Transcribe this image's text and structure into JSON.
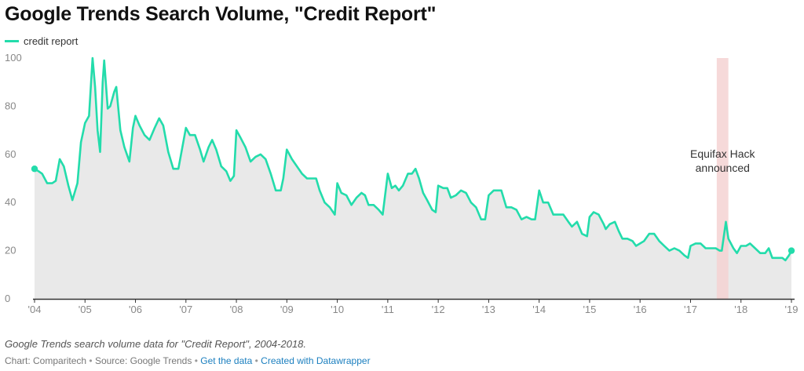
{
  "page": {
    "title": "Google Trends Search Volume, \"Credit Report\"",
    "caption": "Google Trends search volume data for \"Credit Report\", 2004-2018.",
    "footer": {
      "chart_by": "Chart: Comparitech",
      "source": "Source: Google Trends",
      "get_data": "Get the data",
      "created_with": "Created with Datawrapper",
      "separator": "•"
    }
  },
  "colors": {
    "line": "#23dcab",
    "area": "#e9e9e9",
    "highlight": "#f4d2d2",
    "axis": "#333333",
    "grid": "#e0e0e0"
  },
  "chart_data": {
    "type": "area",
    "ylim": [
      0,
      100
    ],
    "xlim": [
      2004,
      2019
    ],
    "y_ticks": [
      0,
      20,
      40,
      60,
      80,
      100
    ],
    "x_ticks": [
      {
        "value": 2004,
        "label": "'04"
      },
      {
        "value": 2005,
        "label": "'05"
      },
      {
        "value": 2006,
        "label": "'06"
      },
      {
        "value": 2007,
        "label": "'07"
      },
      {
        "value": 2008,
        "label": "'08"
      },
      {
        "value": 2009,
        "label": "'09"
      },
      {
        "value": 2010,
        "label": "'10"
      },
      {
        "value": 2011,
        "label": "'11"
      },
      {
        "value": 2012,
        "label": "'12"
      },
      {
        "value": 2013,
        "label": "'13"
      },
      {
        "value": 2014,
        "label": "'14"
      },
      {
        "value": 2015,
        "label": "'15"
      },
      {
        "value": 2016,
        "label": "'16"
      },
      {
        "value": 2017,
        "label": "'17"
      },
      {
        "value": 2018,
        "label": "'18"
      },
      {
        "value": 2019,
        "label": "'19"
      }
    ],
    "series": [
      {
        "name": "credit report",
        "points": [
          [
            2004.0,
            54
          ],
          [
            2004.08,
            53
          ],
          [
            2004.15,
            52
          ],
          [
            2004.25,
            48
          ],
          [
            2004.35,
            48
          ],
          [
            2004.42,
            49
          ],
          [
            2004.5,
            58
          ],
          [
            2004.58,
            55
          ],
          [
            2004.67,
            47
          ],
          [
            2004.75,
            41
          ],
          [
            2004.85,
            48
          ],
          [
            2004.92,
            65
          ],
          [
            2005.0,
            73
          ],
          [
            2005.08,
            76
          ],
          [
            2005.15,
            100
          ],
          [
            2005.2,
            88
          ],
          [
            2005.25,
            70
          ],
          [
            2005.3,
            61
          ],
          [
            2005.35,
            90
          ],
          [
            2005.38,
            99
          ],
          [
            2005.45,
            79
          ],
          [
            2005.5,
            80
          ],
          [
            2005.58,
            86
          ],
          [
            2005.62,
            88
          ],
          [
            2005.7,
            70
          ],
          [
            2005.78,
            63
          ],
          [
            2005.88,
            57
          ],
          [
            2005.95,
            71
          ],
          [
            2006.0,
            76
          ],
          [
            2006.08,
            72
          ],
          [
            2006.18,
            68
          ],
          [
            2006.28,
            66
          ],
          [
            2006.38,
            71
          ],
          [
            2006.47,
            75
          ],
          [
            2006.55,
            72
          ],
          [
            2006.65,
            61
          ],
          [
            2006.75,
            54
          ],
          [
            2006.85,
            54
          ],
          [
            2006.92,
            62
          ],
          [
            2007.0,
            71
          ],
          [
            2007.08,
            68
          ],
          [
            2007.18,
            68
          ],
          [
            2007.28,
            62
          ],
          [
            2007.35,
            57
          ],
          [
            2007.45,
            63
          ],
          [
            2007.52,
            66
          ],
          [
            2007.6,
            62
          ],
          [
            2007.7,
            55
          ],
          [
            2007.8,
            53
          ],
          [
            2007.88,
            49
          ],
          [
            2007.95,
            51
          ],
          [
            2008.0,
            70
          ],
          [
            2008.08,
            67
          ],
          [
            2008.18,
            63
          ],
          [
            2008.28,
            57
          ],
          [
            2008.38,
            59
          ],
          [
            2008.48,
            60
          ],
          [
            2008.58,
            58
          ],
          [
            2008.68,
            52
          ],
          [
            2008.78,
            45
          ],
          [
            2008.88,
            45
          ],
          [
            2008.93,
            50
          ],
          [
            2009.0,
            62
          ],
          [
            2009.1,
            58
          ],
          [
            2009.2,
            55
          ],
          [
            2009.3,
            52
          ],
          [
            2009.4,
            50
          ],
          [
            2009.5,
            50
          ],
          [
            2009.58,
            50
          ],
          [
            2009.65,
            45
          ],
          [
            2009.75,
            40
          ],
          [
            2009.85,
            38
          ],
          [
            2009.95,
            35
          ],
          [
            2010.0,
            48
          ],
          [
            2010.08,
            44
          ],
          [
            2010.18,
            43
          ],
          [
            2010.28,
            39
          ],
          [
            2010.38,
            42
          ],
          [
            2010.48,
            44
          ],
          [
            2010.55,
            43
          ],
          [
            2010.62,
            39
          ],
          [
            2010.72,
            39
          ],
          [
            2010.82,
            37
          ],
          [
            2010.9,
            35
          ],
          [
            2011.0,
            52
          ],
          [
            2011.08,
            46
          ],
          [
            2011.15,
            47
          ],
          [
            2011.22,
            45
          ],
          [
            2011.3,
            47
          ],
          [
            2011.4,
            52
          ],
          [
            2011.48,
            52
          ],
          [
            2011.55,
            54
          ],
          [
            2011.62,
            50
          ],
          [
            2011.7,
            44
          ],
          [
            2011.78,
            41
          ],
          [
            2011.88,
            37
          ],
          [
            2011.95,
            36
          ],
          [
            2012.0,
            47
          ],
          [
            2012.1,
            46
          ],
          [
            2012.18,
            46
          ],
          [
            2012.25,
            42
          ],
          [
            2012.35,
            43
          ],
          [
            2012.45,
            45
          ],
          [
            2012.55,
            44
          ],
          [
            2012.65,
            40
          ],
          [
            2012.75,
            38
          ],
          [
            2012.85,
            33
          ],
          [
            2012.93,
            33
          ],
          [
            2013.0,
            43
          ],
          [
            2013.1,
            45
          ],
          [
            2013.25,
            45
          ],
          [
            2013.35,
            38
          ],
          [
            2013.45,
            38
          ],
          [
            2013.55,
            37
          ],
          [
            2013.65,
            33
          ],
          [
            2013.75,
            34
          ],
          [
            2013.85,
            33
          ],
          [
            2013.92,
            33
          ],
          [
            2014.0,
            45
          ],
          [
            2014.08,
            40
          ],
          [
            2014.18,
            40
          ],
          [
            2014.28,
            35
          ],
          [
            2014.38,
            35
          ],
          [
            2014.48,
            35
          ],
          [
            2014.58,
            32
          ],
          [
            2014.65,
            30
          ],
          [
            2014.75,
            32
          ],
          [
            2014.85,
            27
          ],
          [
            2014.95,
            26
          ],
          [
            2015.0,
            34
          ],
          [
            2015.08,
            36
          ],
          [
            2015.18,
            35
          ],
          [
            2015.28,
            31
          ],
          [
            2015.32,
            29
          ],
          [
            2015.4,
            31
          ],
          [
            2015.5,
            32
          ],
          [
            2015.58,
            28
          ],
          [
            2015.65,
            25
          ],
          [
            2015.75,
            25
          ],
          [
            2015.85,
            24
          ],
          [
            2015.92,
            22
          ],
          [
            2016.0,
            23
          ],
          [
            2016.08,
            24
          ],
          [
            2016.18,
            27
          ],
          [
            2016.28,
            27
          ],
          [
            2016.38,
            24
          ],
          [
            2016.48,
            22
          ],
          [
            2016.58,
            20
          ],
          [
            2016.68,
            21
          ],
          [
            2016.78,
            20
          ],
          [
            2016.88,
            18
          ],
          [
            2016.95,
            17
          ],
          [
            2017.0,
            22
          ],
          [
            2017.1,
            23
          ],
          [
            2017.2,
            23
          ],
          [
            2017.3,
            21
          ],
          [
            2017.4,
            21
          ],
          [
            2017.5,
            21
          ],
          [
            2017.58,
            20
          ],
          [
            2017.62,
            20
          ],
          [
            2017.7,
            32
          ],
          [
            2017.75,
            25
          ],
          [
            2017.85,
            21
          ],
          [
            2017.92,
            19
          ],
          [
            2018.0,
            22
          ],
          [
            2018.1,
            22
          ],
          [
            2018.18,
            23
          ],
          [
            2018.28,
            21
          ],
          [
            2018.38,
            19
          ],
          [
            2018.48,
            19
          ],
          [
            2018.55,
            21
          ],
          [
            2018.62,
            17
          ],
          [
            2018.72,
            17
          ],
          [
            2018.82,
            17
          ],
          [
            2018.88,
            16
          ],
          [
            2018.95,
            18
          ],
          [
            2019.0,
            20
          ]
        ]
      }
    ],
    "highlight": {
      "x_start": 2017.52,
      "x_end": 2017.75,
      "label_lines": [
        "Equifax Hack",
        "announced"
      ]
    }
  }
}
